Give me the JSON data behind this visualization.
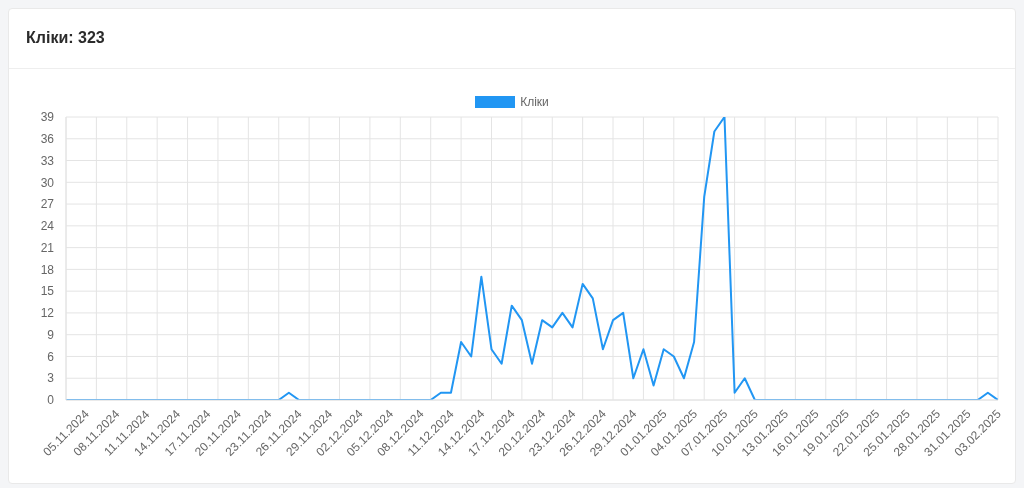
{
  "chart_data": {
    "type": "line",
    "title": "Кліки: 323",
    "categories": [
      "05.11.2024",
      null,
      null,
      "08.11.2024",
      null,
      null,
      "11.11.2024",
      null,
      null,
      "14.11.2024",
      null,
      null,
      "17.11.2024",
      null,
      null,
      "20.11.2024",
      null,
      null,
      "23.11.2024",
      null,
      null,
      "26.11.2024",
      null,
      null,
      "29.11.2024",
      null,
      null,
      "02.12.2024",
      null,
      null,
      "05.12.2024",
      null,
      null,
      "08.12.2024",
      null,
      null,
      "11.12.2024",
      null,
      null,
      "14.12.2024",
      null,
      null,
      "17.12.2024",
      null,
      null,
      "20.12.2024",
      null,
      null,
      "23.12.2024",
      null,
      null,
      "26.12.2024",
      null,
      null,
      "29.12.2024",
      null,
      null,
      "01.01.2025",
      null,
      null,
      "04.01.2025",
      null,
      null,
      "07.01.2025",
      null,
      null,
      "10.01.2025",
      null,
      null,
      "13.01.2025",
      null,
      null,
      "16.01.2025",
      null,
      null,
      "19.01.2025",
      null,
      null,
      "22.01.2025",
      null,
      null,
      "25.01.2025",
      null,
      null,
      "28.01.2025",
      null,
      null,
      "31.01.2025",
      null,
      null,
      "03.02.2025",
      null,
      null
    ],
    "series": [
      {
        "name": "Кліки",
        "color": "#2196f3",
        "values": [
          0,
          0,
          0,
          0,
          0,
          0,
          0,
          0,
          0,
          0,
          0,
          0,
          0,
          0,
          0,
          0,
          0,
          0,
          0,
          0,
          0,
          0,
          1,
          0,
          0,
          0,
          0,
          0,
          0,
          0,
          0,
          0,
          0,
          0,
          0,
          0,
          0,
          1,
          1,
          8,
          6,
          17,
          7,
          5,
          13,
          11,
          5,
          11,
          10,
          12,
          10,
          16,
          14,
          7,
          11,
          12,
          3,
          7,
          2,
          7,
          6,
          3,
          8,
          28,
          37,
          39,
          1,
          3,
          0,
          0,
          0,
          0,
          0,
          0,
          0,
          0,
          0,
          0,
          0,
          0,
          0,
          0,
          0,
          0,
          0,
          0,
          0,
          0,
          0,
          0,
          0,
          1,
          0
        ]
      }
    ],
    "ylim": [
      0,
      39
    ],
    "yticks": [
      0,
      3,
      6,
      9,
      12,
      15,
      18,
      21,
      24,
      27,
      30,
      33,
      36,
      39
    ],
    "grid": true,
    "legend": "top",
    "marker": "none",
    "line_style": "solid"
  }
}
